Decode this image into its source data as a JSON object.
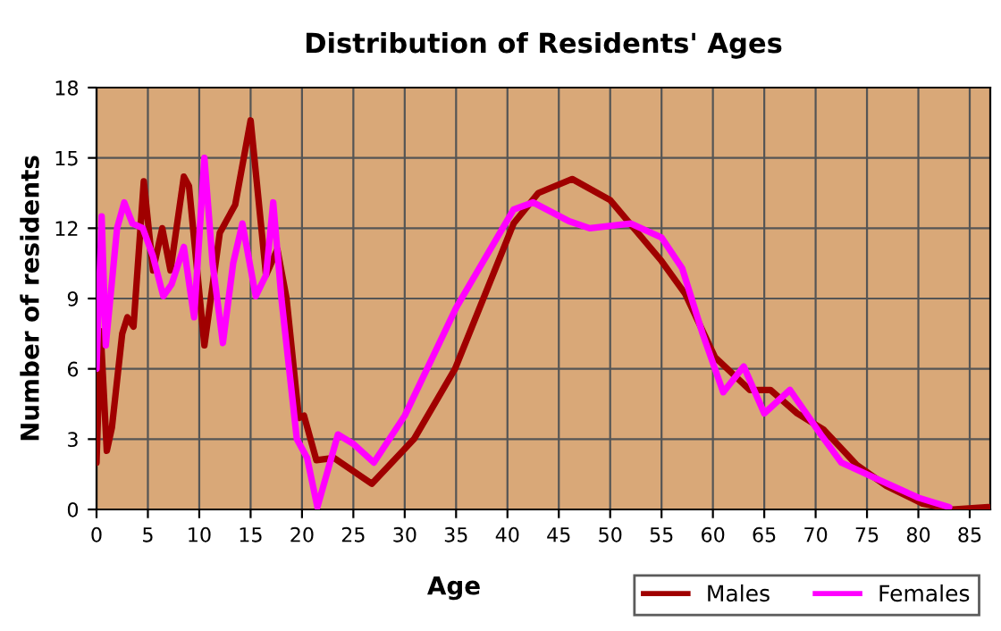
{
  "chart_data": {
    "type": "line",
    "title": "Distribution of Residents' Ages",
    "xlabel": "Age",
    "ylabel": "Number of residents",
    "xlim": [
      0,
      87
    ],
    "xticks": [
      0,
      5,
      10,
      15,
      20,
      25,
      30,
      35,
      40,
      45,
      50,
      55,
      60,
      65,
      70,
      75,
      80,
      85
    ],
    "ylim": [
      0,
      18
    ],
    "yticks": [
      0,
      3,
      6,
      9,
      12,
      15,
      18
    ],
    "grid": true,
    "legend": "bottom right",
    "marker": "none",
    "line_style": "solid",
    "series": [
      {
        "name": "Males",
        "color": "#a00000",
        "x": [
          0,
          0.4,
          1,
          1.5,
          2.5,
          3,
          3.6,
          4.6,
          5.5,
          6.4,
          7.2,
          8.5,
          9,
          10.5,
          12,
          13.5,
          15,
          16.5,
          17.6,
          18.5,
          19.7,
          20.2,
          21.4,
          23.1,
          26.8,
          30.9,
          34.9,
          40.6,
          43,
          46.3,
          50,
          55,
          57.3,
          60.2,
          63.6,
          65.6,
          68.2,
          70.8,
          74,
          76.9,
          80.4,
          83.3,
          86.8
        ],
        "values": [
          2.0,
          7.6,
          2.5,
          3.5,
          7.5,
          8.2,
          7.8,
          14.0,
          10.2,
          12.0,
          10.2,
          14.2,
          13.8,
          7.0,
          11.8,
          13.0,
          16.6,
          10.0,
          11.1,
          9.0,
          3.9,
          4.0,
          2.1,
          2.2,
          1.1,
          3.0,
          6.0,
          12.2,
          13.5,
          14.1,
          13.2,
          10.6,
          9.2,
          6.5,
          5.1,
          5.1,
          4.1,
          3.4,
          1.9,
          1.0,
          0.25,
          0,
          0.1
        ]
      },
      {
        "name": "Females",
        "color": "#ff00ff",
        "x": [
          0,
          0.5,
          0.9,
          2,
          2.7,
          3.5,
          4.5,
          5.5,
          6.5,
          7.3,
          8.5,
          9.5,
          10.5,
          11.3,
          12.3,
          13.3,
          14.2,
          15.5,
          16.5,
          17.2,
          18,
          19.5,
          20.5,
          21.5,
          23.5,
          25,
          27,
          30,
          35,
          40.6,
          42.5,
          46,
          48,
          52,
          55,
          57,
          59,
          61,
          63,
          65,
          67.5,
          70.5,
          72.5,
          76,
          80,
          83
        ],
        "values": [
          6.0,
          12.5,
          7.0,
          12.0,
          13.1,
          12.2,
          12.0,
          10.8,
          9.1,
          9.6,
          11.2,
          8.2,
          15.0,
          10.5,
          7.1,
          10.5,
          12.2,
          9.1,
          10.0,
          13.1,
          9.0,
          3.0,
          2.2,
          0.1,
          3.2,
          2.8,
          2.0,
          4.0,
          8.6,
          12.8,
          13.1,
          12.3,
          12.0,
          12.2,
          11.6,
          10.3,
          7.5,
          5.0,
          6.1,
          4.1,
          5.1,
          3.2,
          2.0,
          1.3,
          0.5,
          0.1
        ]
      }
    ]
  }
}
